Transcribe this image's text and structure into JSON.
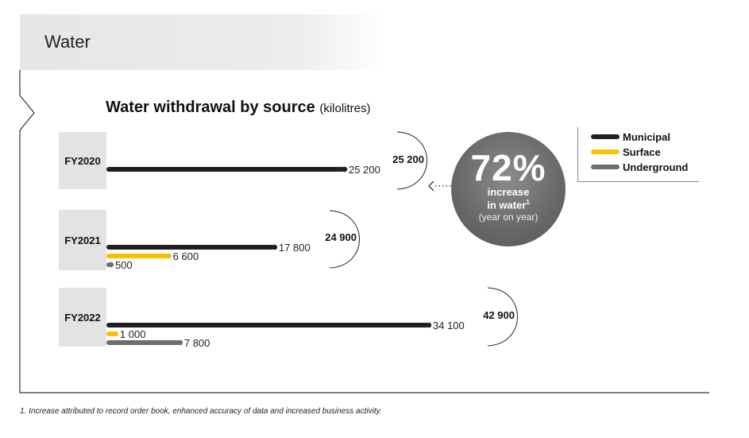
{
  "section": {
    "title": "Water"
  },
  "chart_data": {
    "type": "bar",
    "orientation": "horizontal",
    "title": "Water withdrawal by source",
    "unit": "(kilolitres)",
    "categories": [
      "FY2020",
      "FY2021",
      "FY2022"
    ],
    "series": [
      {
        "name": "Municipal",
        "color": "#231f20",
        "values": [
          25200,
          17800,
          34100
        ],
        "labels": [
          "25 200",
          "17 800",
          "34 100"
        ]
      },
      {
        "name": "Surface",
        "color": "#f5c400",
        "values": [
          null,
          6600,
          1000
        ],
        "labels": [
          "",
          "6 600",
          "1 000"
        ]
      },
      {
        "name": "Underground",
        "color": "#6d6e70",
        "values": [
          null,
          500,
          7800
        ],
        "labels": [
          "",
          "500",
          "7 800"
        ]
      }
    ],
    "totals": [
      25200,
      24900,
      42900
    ],
    "total_labels": [
      "25 200",
      "24 900",
      "42 900"
    ],
    "xlim": [
      0,
      34100
    ],
    "grid": false,
    "legend_position": "top-right"
  },
  "callout": {
    "value": "72%",
    "line1": "increase",
    "line2": "in water",
    "footnote_ref": "1",
    "line3": "(year on year)"
  },
  "footnote": "1.  Increase attributed to record order book, enhanced accuracy of data and increased business activity."
}
